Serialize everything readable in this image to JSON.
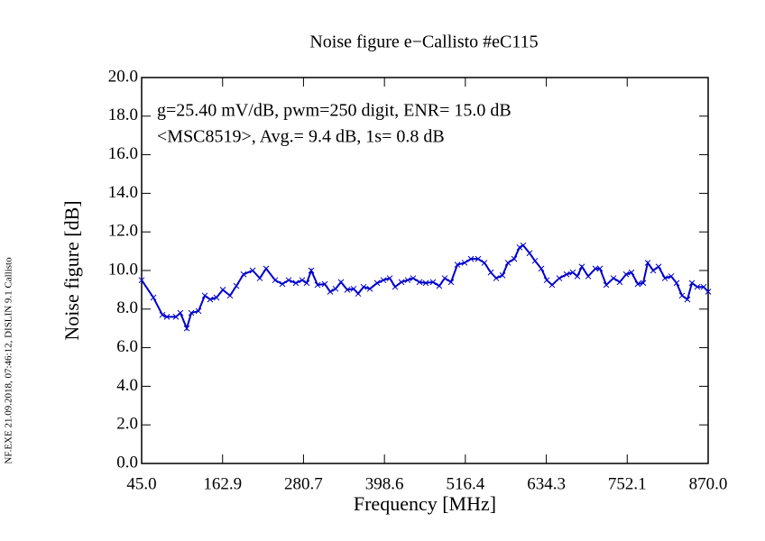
{
  "chart_data": {
    "type": "line",
    "title": "Noise figure e−Callisto #eC115",
    "x_label": "Frequency [MHz]",
    "y_label": "Noise figure [dB]",
    "annotations": [
      "g=25.40 mV/dB, pwm=250 digit, ENR= 15.0 dB",
      "<MSC8519>, Avg.= 9.4 dB, 1s= 0.8 dB"
    ],
    "side_note": "NF.EXE 21.09.2018, 07:46:12, DISLIN 9.1 Callisto",
    "xlim": [
      45,
      870
    ],
    "ylim": [
      0,
      20
    ],
    "xticks": [
      {
        "value": 45,
        "label": "45.0"
      },
      162.9,
      280.7,
      398.6,
      516.4,
      634.3,
      752.1,
      {
        "value": 870,
        "label": "870.0"
      }
    ],
    "yticks": [
      {
        "value": 0,
        "label": "0.0"
      },
      {
        "value": 2,
        "label": "2.0"
      },
      {
        "value": 4,
        "label": "4.0"
      },
      {
        "value": 6,
        "label": "6.0"
      },
      {
        "value": 8,
        "label": "8.0"
      },
      {
        "value": 10,
        "label": "10.0"
      },
      {
        "value": 12,
        "label": "12.0"
      },
      {
        "value": 14,
        "label": "14.0"
      },
      {
        "value": 16,
        "label": "16.0"
      },
      {
        "value": 18,
        "label": "18.0"
      },
      {
        "value": 20,
        "label": "20.0"
      }
    ],
    "x": [
      45,
      62.1,
      75.2,
      81.8,
      94.9,
      101.5,
      110.7,
      117.3,
      127.8,
      137,
      144.8,
      154,
      163.2,
      173.7,
      182.9,
      193.4,
      206.6,
      217.1,
      226.3,
      239.4,
      249.9,
      259.1,
      269.6,
      278.8,
      285.4,
      292,
      301.2,
      311.7,
      319.6,
      327.4,
      335.3,
      344.5,
      353.7,
      360.3,
      368.2,
      377.4,
      387.9,
      397.1,
      406.3,
      414.1,
      423.3,
      432.5,
      440.4,
      449.6,
      458.8,
      469.3,
      478.5,
      486.4,
      495.6,
      504.8,
      515.3,
      524.5,
      535,
      544.2,
      553.4,
      561.3,
      570.5,
      578.4,
      587.6,
      595.4,
      600.7,
      609.9,
      617.8,
      627,
      634.9,
      642.7,
      653.2,
      663.8,
      672.9,
      679.5,
      686.1,
      695.3,
      705.8,
      712.4,
      721.6,
      732.1,
      741.3,
      750.5,
      758.3,
      767.5,
      775.4,
      782,
      789.9,
      797.8,
      807,
      816.1,
      824,
      831.9,
      839.8,
      846.4,
      854.2,
      863.4,
      870
    ],
    "series": [
      {
        "color": "#0000cc",
        "values": [
          9.5,
          8.6,
          7.7,
          7.6,
          7.6,
          7.8,
          7.0,
          7.8,
          7.9,
          8.7,
          8.5,
          8.6,
          9.0,
          8.7,
          9.2,
          9.8,
          10.0,
          9.6,
          10.1,
          9.5,
          9.3,
          9.5,
          9.35,
          9.5,
          9.35,
          10.0,
          9.25,
          9.3,
          8.9,
          9.05,
          9.4,
          9.0,
          9.05,
          8.8,
          9.15,
          9.05,
          9.35,
          9.5,
          9.6,
          9.15,
          9.4,
          9.5,
          9.6,
          9.4,
          9.35,
          9.4,
          9.2,
          9.6,
          9.4,
          10.3,
          10.4,
          10.6,
          10.6,
          10.4,
          9.9,
          9.6,
          9.75,
          10.4,
          10.6,
          11.2,
          11.3,
          10.9,
          10.5,
          10.1,
          9.5,
          9.25,
          9.6,
          9.8,
          9.9,
          9.7,
          10.2,
          9.7,
          10.1,
          10.1,
          9.25,
          9.6,
          9.4,
          9.8,
          9.9,
          9.3,
          9.35,
          10.4,
          10.0,
          10.2,
          9.6,
          9.7,
          9.35,
          8.7,
          8.5,
          9.35,
          9.15,
          9.15,
          8.9
        ]
      }
    ]
  }
}
